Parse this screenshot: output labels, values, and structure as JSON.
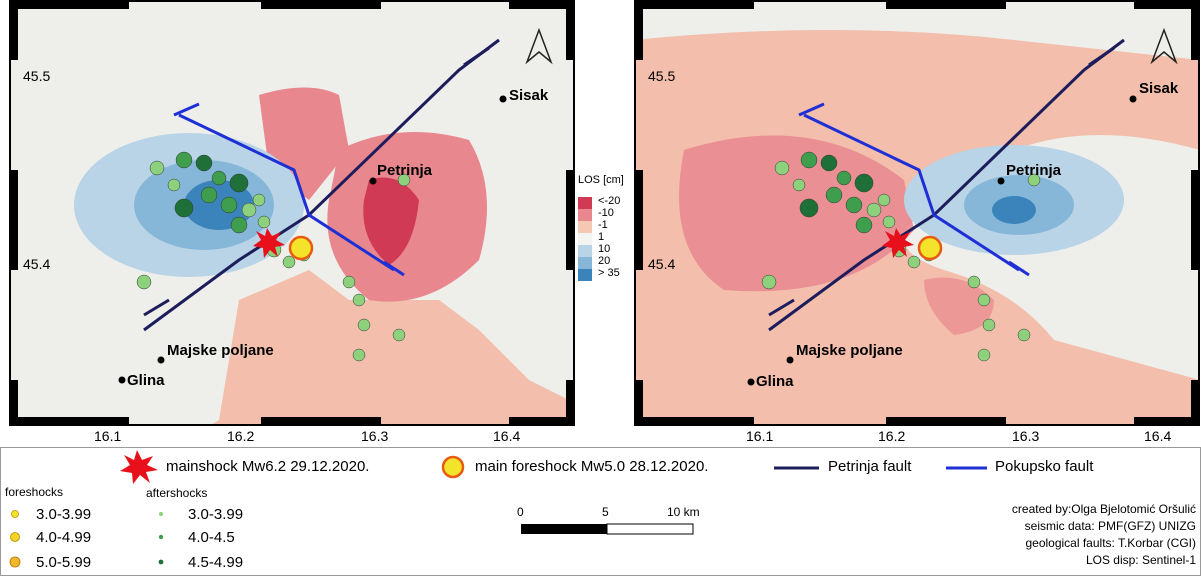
{
  "maps": [
    {
      "lat_labels": [
        "45.5",
        "45.4"
      ],
      "lon_labels": [
        "16.1",
        "16.2",
        "16.3",
        "16.4"
      ],
      "cities": {
        "sisak": "Sisak",
        "petrinja": "Petrinja",
        "majske": "Majske poljane",
        "glina": "Glina"
      }
    },
    {
      "lat_labels": [
        "45.5",
        "45.4"
      ],
      "lon_labels": [
        "16.1",
        "16.2",
        "16.3",
        "16.4"
      ],
      "cities": {
        "sisak": "Sisak",
        "petrinja": "Petrinja",
        "majske": "Majske poljane",
        "glina": "Glina"
      }
    }
  ],
  "los_legend": {
    "title": "LOS [cm]",
    "classes": [
      {
        "label": "<-20",
        "color": "#d03a55"
      },
      {
        "label": "-10",
        "color": "#e8878e"
      },
      {
        "label": "-1",
        "color": "#f5c8b4"
      },
      {
        "label": "1",
        "color": "#f4f4f2"
      },
      {
        "label": "10",
        "color": "#b8d4e6"
      },
      {
        "label": "20",
        "color": "#86b7d8"
      },
      {
        "label": "> 35",
        "color": "#3a84bb"
      }
    ]
  },
  "legend": {
    "mainshock": "mainshock Mw6.2 29.12.2020.",
    "main_foreshock": "main foreshock Mw5.0 28.12.2020.",
    "petrinja_fault": "Petrinja fault",
    "pokupsko_fault": "Pokupsko fault",
    "foreshocks_title": "foreshocks",
    "aftershocks_title": "aftershocks",
    "foreshock_classes": [
      "3.0-3.99",
      "4.0-4.99",
      "5.0-5.99"
    ],
    "aftershock_classes": [
      "3.0-3.99",
      "4.0-4.5",
      "4.5-4.99"
    ],
    "scale_labels": [
      "0",
      "5",
      "10 km"
    ],
    "credits": [
      "created by:Olga Bjelotomić Oršulić",
      "seismic data: PMF(GFZ) UNIZG",
      "geological faults: T.Korbar (CGI)",
      "LOS disp: Sentinel-1"
    ]
  },
  "colors": {
    "petrinja_fault": "#1d1d5c",
    "pokupsko_fault": "#1f2fd6",
    "mainshock": "#e8101a",
    "foreshock": "#f3e32a",
    "aftershock_small": "#8ed17d",
    "aftershock_mid": "#3e9e4e",
    "aftershock_large": "#1f6f38"
  }
}
